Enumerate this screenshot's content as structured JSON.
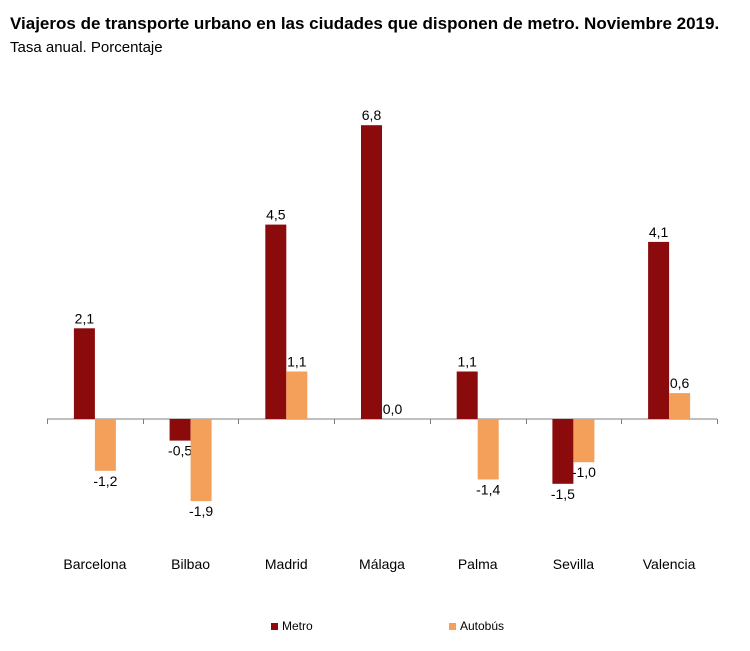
{
  "chart_data": {
    "type": "bar",
    "title": "Viajeros de transporte urbano en las ciudades que disponen de metro. Noviembre 2019.",
    "subtitle": "Tasa anual. Porcentaje",
    "categories": [
      "Barcelona",
      "Bilbao",
      "Madrid",
      "Málaga",
      "Palma",
      "Sevilla",
      "Valencia"
    ],
    "series": [
      {
        "name": "Metro",
        "color": "#8B0A0C",
        "values": [
          2.1,
          -0.5,
          4.5,
          6.8,
          1.1,
          -1.5,
          4.1
        ],
        "labels": [
          "2,1",
          "-0,5",
          "4,5",
          "6,8",
          "1,1",
          "-1,5",
          "4,1"
        ]
      },
      {
        "name": "Autobús",
        "color": "#F4A05A",
        "values": [
          -1.2,
          -1.9,
          1.1,
          0.0,
          -1.4,
          -1.0,
          0.6
        ],
        "labels": [
          "-1,2",
          "-1,9",
          "1,1",
          "0,0",
          "-1,4",
          "-1,0",
          "0,6"
        ]
      }
    ],
    "ylim": [
      -2.5,
      8.0
    ],
    "xlabel": "",
    "ylabel": "",
    "legend": "bottom",
    "grid": false
  }
}
